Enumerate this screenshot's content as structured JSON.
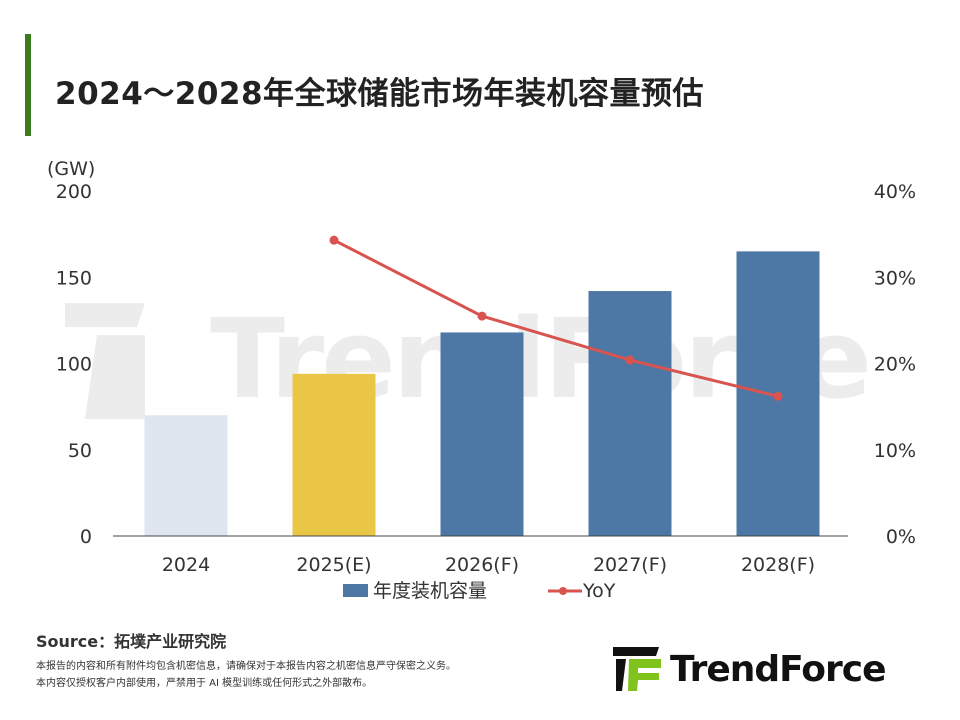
{
  "title": "2024～2028年全球储能市场年装机容量预估",
  "colors": {
    "accent": "#3b7a1e",
    "bar_default": "#4d78a6",
    "bar_2024": "#dfe6ef",
    "bar_2025": "#e9c646",
    "line": "#d9534f"
  },
  "chart_data": {
    "type": "bar+line",
    "title": "2024～2028年全球储能市场年装机容量预估",
    "categories": [
      "2024",
      "2025(E)",
      "2026(F)",
      "2027(F)",
      "2028(F)"
    ],
    "y_unit": "(GW)",
    "ylim": [
      0,
      200
    ],
    "yticks": [
      "0",
      "50",
      "100",
      "150",
      "200"
    ],
    "y2lim": [
      0,
      40
    ],
    "y2ticks": [
      "0%",
      "10%",
      "20%",
      "30%",
      "40%"
    ],
    "grid": false,
    "legend_placement": "bottom",
    "series": [
      {
        "name": "年度装机容量",
        "type": "bar",
        "values": [
          70,
          94,
          118,
          142,
          165
        ]
      },
      {
        "name": "YoY",
        "type": "line",
        "axis": "right",
        "values": [
          null,
          34.3,
          25.5,
          20.4,
          16.2
        ]
      }
    ]
  },
  "footer": {
    "source": "Source：拓墣产业研究院",
    "disclaimer_1": "本报告的内容和所有附件均包含机密信息，请确保对于本报告内容之机密信息严守保密之义务。",
    "disclaimer_2": "本内容仅授权客户内部使用，严禁用于 AI 模型训练或任何形式之外部散布。"
  },
  "logo": {
    "text": "TrendForce"
  }
}
